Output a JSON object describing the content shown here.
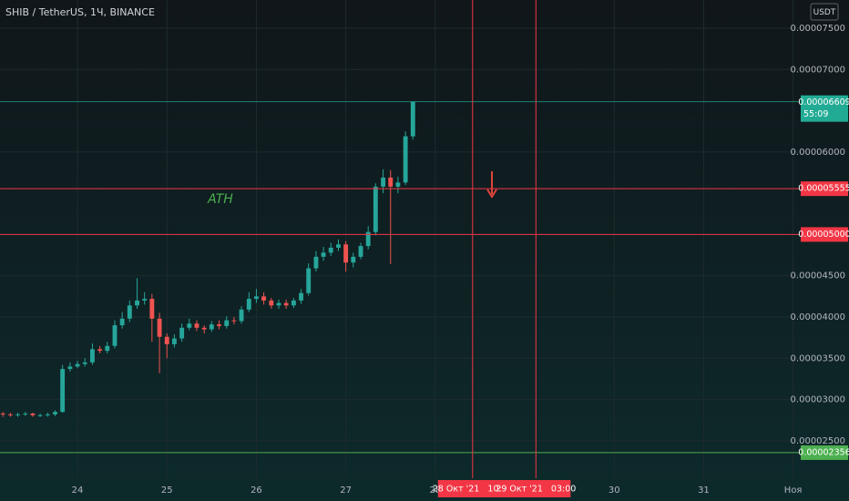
{
  "chart_data": {
    "type": "candlestick",
    "title": "SHIB / TetherUS, 1Ч, BINANCE",
    "currency_button": "USDT",
    "annotation": "ATH",
    "annotation_color": "#4caf50",
    "up_color": "#26a69a",
    "down_color": "#ef5350",
    "grid": true,
    "x": [
      23.167,
      23.25,
      23.333,
      23.417,
      23.5,
      23.583,
      23.667,
      23.75,
      23.833,
      23.917,
      24,
      24.083,
      24.167,
      24.25,
      24.333,
      24.417,
      24.5,
      24.583,
      24.667,
      24.75,
      24.833,
      24.917,
      25,
      25.083,
      25.167,
      25.25,
      25.333,
      25.417,
      25.5,
      25.583,
      25.667,
      25.75,
      25.833,
      25.917,
      26,
      26.083,
      26.167,
      26.25,
      26.333,
      26.417,
      26.5,
      26.583,
      26.667,
      26.75,
      26.833,
      26.917,
      27,
      27.083,
      27.167,
      27.25,
      27.333,
      27.417,
      27.5,
      27.583,
      27.667,
      27.75
    ],
    "open": [
      2.83e-05,
      2.82e-05,
      2.81e-05,
      2.82e-05,
      2.83e-05,
      2.81e-05,
      2.81e-05,
      2.82e-05,
      2.85e-05,
      3.37e-05,
      3.4e-05,
      3.43e-05,
      3.45e-05,
      3.61e-05,
      3.59e-05,
      3.65e-05,
      3.9e-05,
      3.98e-05,
      4.14e-05,
      4.2e-05,
      4.22e-05,
      3.98e-05,
      3.76e-05,
      3.67e-05,
      3.74e-05,
      3.87e-05,
      3.92e-05,
      3.87e-05,
      3.85e-05,
      3.91e-05,
      3.89e-05,
      3.96e-05,
      3.95e-05,
      4.09e-05,
      4.22e-05,
      4.25e-05,
      4.2e-05,
      4.14e-05,
      4.17e-05,
      4.14e-05,
      4.2e-05,
      4.29e-05,
      4.59e-05,
      4.73e-05,
      4.78e-05,
      4.84e-05,
      4.88e-05,
      4.66e-05,
      4.73e-05,
      4.86e-05,
      5.03e-05,
      5.58e-05,
      5.69e-05,
      5.58e-05,
      5.63e-05,
      6.19e-05
    ],
    "high": [
      2.85e-05,
      2.84e-05,
      2.84e-05,
      2.85e-05,
      2.84e-05,
      2.83e-05,
      2.84e-05,
      2.87e-05,
      3.42e-05,
      3.45e-05,
      3.47e-05,
      3.5e-05,
      3.68e-05,
      3.65e-05,
      3.7e-05,
      3.96e-05,
      4.06e-05,
      4.2e-05,
      4.47e-05,
      4.3e-05,
      4.28e-05,
      4.05e-05,
      3.8e-05,
      3.79e-05,
      3.92e-05,
      3.98e-05,
      3.96e-05,
      3.9e-05,
      3.95e-05,
      3.96e-05,
      4.01e-05,
      4e-05,
      4.13e-05,
      4.3e-05,
      4.34e-05,
      4.3e-05,
      4.23e-05,
      4.21e-05,
      4.21e-05,
      4.23e-05,
      4.34e-05,
      4.65e-05,
      4.8e-05,
      4.85e-05,
      4.9e-05,
      4.94e-05,
      4.92e-05,
      4.78e-05,
      4.9e-05,
      5.1e-05,
      5.62e-05,
      5.79e-05,
      5.78e-05,
      5.7e-05,
      6.25e-05,
      6.609e-05
    ],
    "low": [
      2.79e-05,
      2.79e-05,
      2.79e-05,
      2.8e-05,
      2.79e-05,
      2.79e-05,
      2.79e-05,
      2.8e-05,
      2.84e-05,
      3.34e-05,
      3.38e-05,
      3.4e-05,
      3.42e-05,
      3.56e-05,
      3.56e-05,
      3.62e-05,
      3.86e-05,
      3.94e-05,
      4.1e-05,
      4.15e-05,
      3.7e-05,
      3.32e-05,
      3.5e-05,
      3.63e-05,
      3.7e-05,
      3.84e-05,
      3.83e-05,
      3.8e-05,
      3.82e-05,
      3.85e-05,
      3.86e-05,
      3.91e-05,
      3.92e-05,
      4.06e-05,
      4.17e-05,
      4.15e-05,
      4.1e-05,
      4.1e-05,
      4.1e-05,
      4.11e-05,
      4.16e-05,
      4.26e-05,
      4.55e-05,
      4.68e-05,
      4.74e-05,
      4.8e-05,
      4.55e-05,
      4.6e-05,
      4.7e-05,
      4.82e-05,
      4.99e-05,
      5.5e-05,
      4.64e-05,
      5.5e-05,
      5.6e-05,
      6.15e-05
    ],
    "close": [
      2.82e-05,
      2.81e-05,
      2.82e-05,
      2.83e-05,
      2.81e-05,
      2.81e-05,
      2.82e-05,
      2.85e-05,
      3.37e-05,
      3.4e-05,
      3.43e-05,
      3.45e-05,
      3.61e-05,
      3.59e-05,
      3.65e-05,
      3.9e-05,
      3.98e-05,
      4.14e-05,
      4.2e-05,
      4.22e-05,
      3.98e-05,
      3.76e-05,
      3.67e-05,
      3.74e-05,
      3.87e-05,
      3.92e-05,
      3.87e-05,
      3.85e-05,
      3.91e-05,
      3.89e-05,
      3.96e-05,
      3.95e-05,
      4.09e-05,
      4.22e-05,
      4.25e-05,
      4.2e-05,
      4.14e-05,
      4.17e-05,
      4.14e-05,
      4.2e-05,
      4.29e-05,
      4.59e-05,
      4.73e-05,
      4.78e-05,
      4.84e-05,
      4.88e-05,
      4.66e-05,
      4.73e-05,
      4.86e-05,
      5.03e-05,
      5.58e-05,
      5.69e-05,
      5.58e-05,
      5.63e-05,
      6.19e-05,
      6.609e-05
    ],
    "xlim": [
      23.134,
      32.075
    ],
    "ylim": [
      2.046e-05,
      7.842e-05
    ],
    "xticks": [
      24,
      25,
      26,
      27,
      28,
      30,
      31,
      {
        "value": 32,
        "label": "Ноя"
      }
    ],
    "yticks": [
      {
        "value": 7.5e-05,
        "label": "0.00007500"
      },
      {
        "value": 7e-05,
        "label": "0.00007000"
      },
      {
        "value": 6e-05,
        "label": "0.00006000"
      },
      {
        "value": 4.5e-05,
        "label": "0.00004500"
      },
      {
        "value": 4e-05,
        "label": "0.00004000"
      },
      {
        "value": 3.5e-05,
        "label": "0.00003500"
      },
      {
        "value": 3e-05,
        "label": "0.00003000"
      },
      {
        "value": 2.5e-05,
        "label": "0.00002500"
      }
    ],
    "levels": [
      {
        "value": 5.555e-05,
        "label": "0.00005555",
        "color": "#f23645"
      },
      {
        "value": 5e-05,
        "label": "0.00005000",
        "color": "#f23645"
      },
      {
        "value": 2.356e-05,
        "label": "0.00002356",
        "color": "#4caf50"
      }
    ],
    "last_price": {
      "value": 6.609e-05,
      "label": "0.00006609",
      "countdown": "55:09",
      "color": "#22ab94"
    },
    "vlines": [
      {
        "value": 28.417,
        "label": "28 Окт '21   10:00",
        "color": "#f23645"
      },
      {
        "value": 29.125,
        "label": "29 Окт '21   03:00",
        "color": "#f23645"
      }
    ]
  }
}
